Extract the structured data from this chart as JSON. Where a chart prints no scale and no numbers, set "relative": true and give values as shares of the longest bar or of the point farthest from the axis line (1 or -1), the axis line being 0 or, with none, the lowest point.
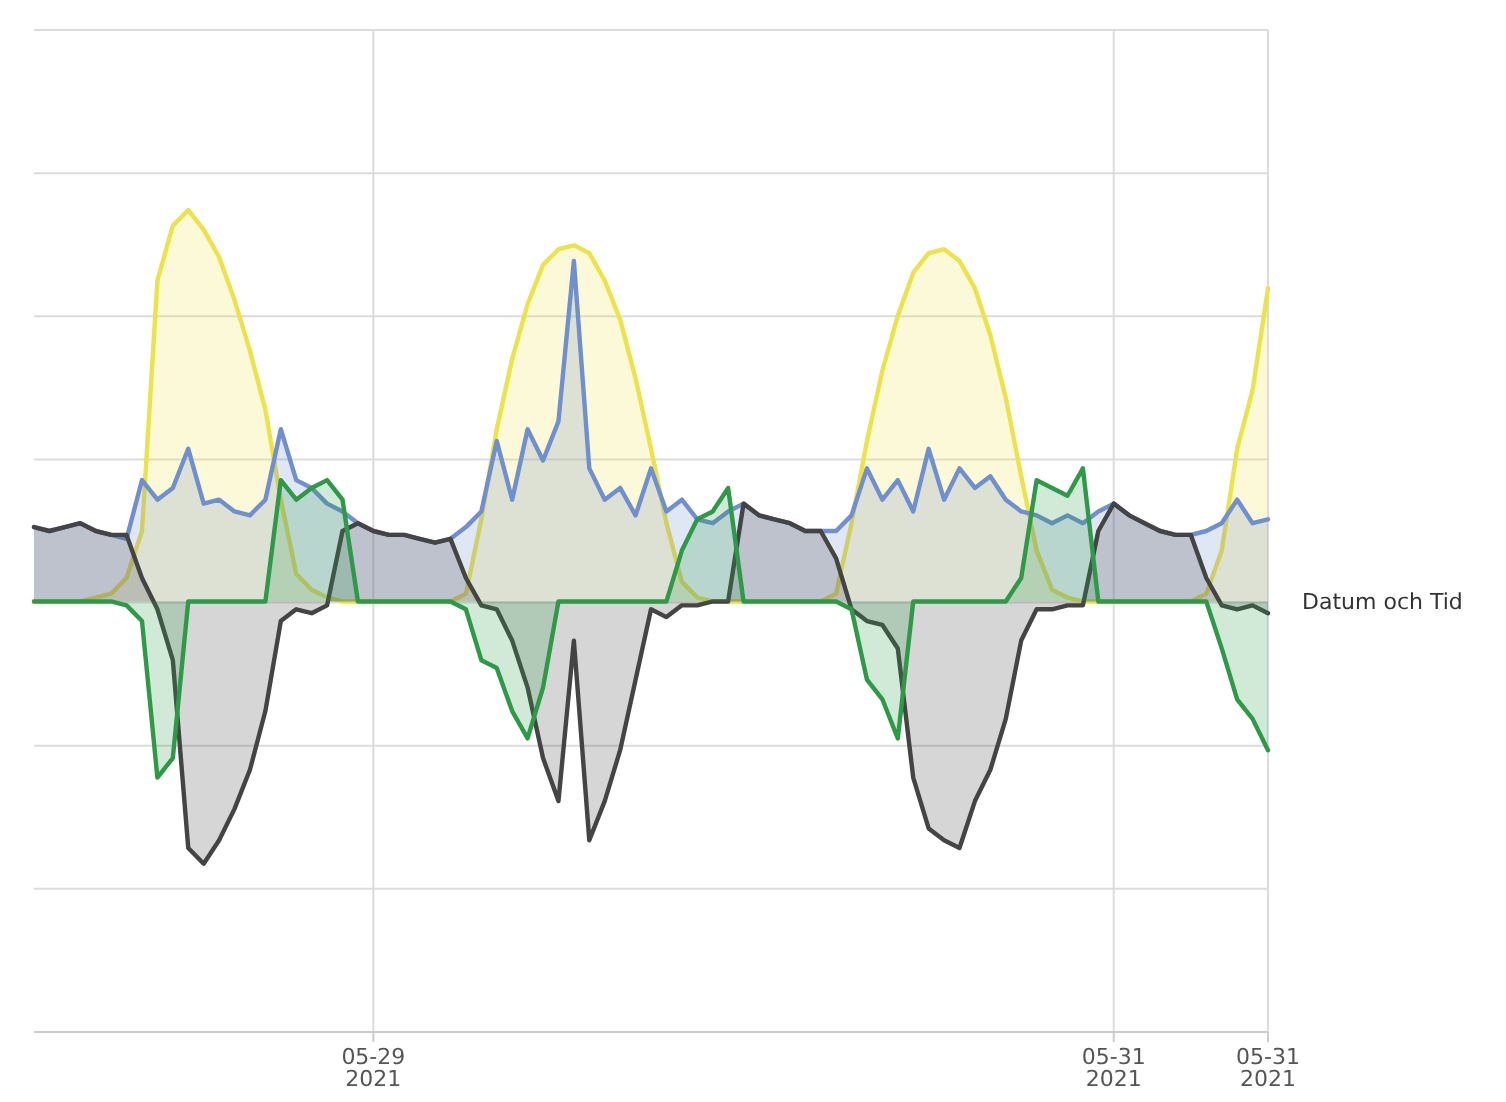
{
  "chart_data": {
    "type": "area",
    "relative": true,
    "xlabel": "Datum och Tid",
    "grid": true,
    "xlim": [
      "2021-05-28T02:00",
      "2021-05-31T10:00"
    ],
    "xticks": [
      {
        "value": "2021-05-29",
        "label": "05-29\n2021"
      },
      {
        "value": "2021-05-31",
        "label": "05-31\n2021"
      },
      {
        "value": "2021-05-31T10:00",
        "label": "05-31\n2021"
      }
    ],
    "x": [
      "2021-05-28T02:00",
      "2021-05-28T03:00",
      "2021-05-28T04:00",
      "2021-05-28T05:00",
      "2021-05-28T06:00",
      "2021-05-28T07:00",
      "2021-05-28T08:00",
      "2021-05-28T09:00",
      "2021-05-28T10:00",
      "2021-05-28T11:00",
      "2021-05-28T12:00",
      "2021-05-28T13:00",
      "2021-05-28T14:00",
      "2021-05-28T15:00",
      "2021-05-28T16:00",
      "2021-05-28T17:00",
      "2021-05-28T18:00",
      "2021-05-28T19:00",
      "2021-05-28T20:00",
      "2021-05-28T21:00",
      "2021-05-28T22:00",
      "2021-05-28T23:00",
      "2021-05-29T00:00",
      "2021-05-29T01:00",
      "2021-05-29T02:00",
      "2021-05-29T03:00",
      "2021-05-29T04:00",
      "2021-05-29T05:00",
      "2021-05-29T06:00",
      "2021-05-29T07:00",
      "2021-05-29T08:00",
      "2021-05-29T09:00",
      "2021-05-29T10:00",
      "2021-05-29T11:00",
      "2021-05-29T12:00",
      "2021-05-29T13:00",
      "2021-05-29T14:00",
      "2021-05-29T15:00",
      "2021-05-29T16:00",
      "2021-05-29T17:00",
      "2021-05-29T18:00",
      "2021-05-29T19:00",
      "2021-05-29T20:00",
      "2021-05-29T21:00",
      "2021-05-29T22:00",
      "2021-05-29T23:00",
      "2021-05-30T00:00",
      "2021-05-30T01:00",
      "2021-05-30T02:00",
      "2021-05-30T03:00",
      "2021-05-30T04:00",
      "2021-05-30T05:00",
      "2021-05-30T06:00",
      "2021-05-30T07:00",
      "2021-05-30T08:00",
      "2021-05-30T09:00",
      "2021-05-30T10:00",
      "2021-05-30T11:00",
      "2021-05-30T12:00",
      "2021-05-30T13:00",
      "2021-05-30T14:00",
      "2021-05-30T15:00",
      "2021-05-30T16:00",
      "2021-05-30T17:00",
      "2021-05-30T18:00",
      "2021-05-30T19:00",
      "2021-05-30T20:00",
      "2021-05-30T21:00",
      "2021-05-30T22:00",
      "2021-05-30T23:00",
      "2021-05-31T00:00",
      "2021-05-31T01:00",
      "2021-05-31T02:00",
      "2021-05-31T03:00",
      "2021-05-31T04:00",
      "2021-05-31T05:00",
      "2021-05-31T06:00",
      "2021-05-31T07:00",
      "2021-05-31T08:00",
      "2021-05-31T09:00",
      "2021-05-31T10:00"
    ],
    "series": [
      {
        "color": "#ece24a",
        "values": [
          0,
          0,
          0,
          0,
          0.01,
          0.02,
          0.06,
          0.18,
          0.82,
          0.96,
          1,
          0.95,
          0.88,
          0.77,
          0.64,
          0.49,
          0.26,
          0.07,
          0.03,
          0.01,
          0,
          0,
          0,
          0,
          0,
          0,
          0,
          0,
          0.02,
          0.21,
          0.44,
          0.62,
          0.76,
          0.86,
          0.9,
          0.91,
          0.89,
          0.82,
          0.72,
          0.57,
          0.39,
          0.2,
          0.05,
          0.01,
          0,
          0,
          0,
          0,
          0,
          0,
          0,
          0,
          0.02,
          0.2,
          0.41,
          0.59,
          0.73,
          0.84,
          0.89,
          0.9,
          0.87,
          0.8,
          0.68,
          0.52,
          0.32,
          0.13,
          0.03,
          0.01,
          0,
          0,
          0,
          0,
          0,
          0,
          0,
          0,
          0.02,
          0.13,
          0.39,
          0.54,
          0.8
        ]
      },
      {
        "color": "#6f8fcf",
        "values": [
          0.19,
          0.18,
          0.19,
          0.2,
          0.18,
          0.17,
          0.16,
          0.31,
          0.26,
          0.29,
          0.39,
          0.25,
          0.26,
          0.23,
          0.22,
          0.26,
          0.44,
          0.31,
          0.29,
          0.25,
          0.23,
          0.2,
          0.18,
          0.17,
          0.17,
          0.16,
          0.15,
          0.16,
          0.19,
          0.23,
          0.41,
          0.26,
          0.44,
          0.36,
          0.46,
          0.87,
          0.34,
          0.26,
          0.29,
          0.22,
          0.34,
          0.23,
          0.26,
          0.21,
          0.2,
          0.23,
          0.25,
          0.22,
          0.21,
          0.2,
          0.18,
          0.18,
          0.18,
          0.22,
          0.34,
          0.26,
          0.31,
          0.23,
          0.39,
          0.26,
          0.34,
          0.29,
          0.32,
          0.26,
          0.23,
          0.22,
          0.2,
          0.22,
          0.2,
          0.23,
          0.25,
          0.22,
          0.2,
          0.18,
          0.17,
          0.17,
          0.18,
          0.2,
          0.26,
          0.2,
          0.21
        ]
      },
      {
        "color": "#444444",
        "values": [
          0.19,
          0.18,
          0.19,
          0.2,
          0.18,
          0.17,
          0.17,
          0.06,
          -0.02,
          -0.15,
          -0.63,
          -0.67,
          -0.61,
          -0.53,
          -0.43,
          -0.28,
          -0.05,
          -0.02,
          -0.03,
          -0.01,
          0.18,
          0.2,
          0.18,
          0.17,
          0.17,
          0.16,
          0.15,
          0.16,
          0.06,
          -0.01,
          -0.02,
          -0.1,
          -0.22,
          -0.4,
          -0.51,
          -0.1,
          -0.61,
          -0.51,
          -0.38,
          -0.2,
          -0.02,
          -0.04,
          -0.01,
          -0.01,
          0,
          0,
          0.25,
          0.22,
          0.21,
          0.2,
          0.18,
          0.18,
          0.11,
          -0.02,
          -0.05,
          -0.06,
          -0.12,
          -0.45,
          -0.58,
          -0.61,
          -0.63,
          -0.51,
          -0.43,
          -0.3,
          -0.1,
          -0.02,
          -0.02,
          -0.01,
          -0.01,
          0.18,
          0.25,
          0.22,
          0.2,
          0.18,
          0.17,
          0.17,
          0.06,
          -0.01,
          -0.02,
          -0.01,
          -0.03
        ]
      },
      {
        "color": "#2e9a48",
        "values": [
          0,
          0,
          0,
          0,
          0,
          0,
          -0.01,
          -0.05,
          -0.45,
          -0.4,
          0,
          0,
          0,
          0,
          0,
          0,
          0.31,
          0.26,
          0.29,
          0.31,
          0.26,
          0,
          0,
          0,
          0,
          0,
          0,
          0,
          -0.02,
          -0.15,
          -0.17,
          -0.28,
          -0.35,
          -0.22,
          0,
          0,
          0,
          0,
          0,
          0,
          0,
          0,
          0.13,
          0.21,
          0.23,
          0.29,
          0,
          0,
          0,
          0,
          0,
          0,
          0,
          -0.02,
          -0.2,
          -0.25,
          -0.35,
          0,
          0,
          0,
          0,
          0,
          0,
          0,
          0.06,
          0.31,
          0.29,
          0.27,
          0.34,
          0,
          0,
          0,
          0,
          0,
          0,
          0,
          0,
          -0.12,
          -0.25,
          -0.3,
          -0.38
        ]
      }
    ]
  }
}
